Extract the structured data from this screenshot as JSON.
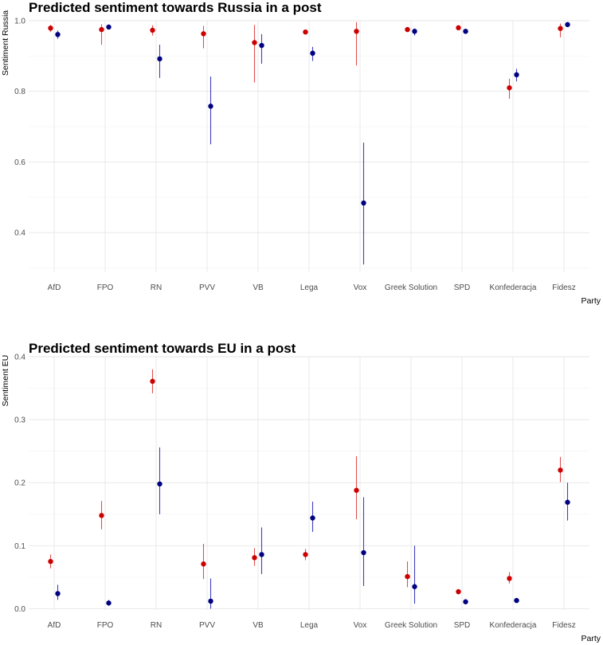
{
  "colors": {
    "red": "#cc0000",
    "blue": "#000080",
    "red_line": "#e05050",
    "blue_line": "#4040c0"
  },
  "chart_data": [
    {
      "type": "scatter",
      "title": "Predicted sentiment towards Russia in a post",
      "xlabel": "Party",
      "ylabel": "Sentiment Russia",
      "categories": [
        "AfD",
        "FPO",
        "RN",
        "PVV",
        "VB",
        "Lega",
        "Vox",
        "Greek Solution",
        "SPD",
        "Konfederacja",
        "Fidesz"
      ],
      "ylim": [
        0.29,
        1.0
      ],
      "yticks": [
        "0.4",
        "0.6",
        "0.8",
        "1.0"
      ],
      "series": [
        {
          "color": "#cc0000",
          "values": [
            0.979,
            0.975,
            0.973,
            0.963,
            0.938,
            0.968,
            0.97,
            0.975,
            0.98,
            0.81,
            0.978
          ],
          "lower": [
            0.968,
            0.932,
            0.958,
            0.922,
            0.825,
            0.963,
            0.873,
            0.968,
            0.976,
            0.779,
            0.953
          ],
          "upper": [
            0.988,
            0.99,
            0.987,
            0.985,
            0.988,
            0.973,
            0.996,
            0.982,
            0.984,
            0.836,
            0.992
          ]
        },
        {
          "color": "#000080",
          "values": [
            0.961,
            0.982,
            0.892,
            0.758,
            0.93,
            0.908,
            0.484,
            0.97,
            0.97,
            0.847,
            0.989
          ],
          "lower": [
            0.949,
            0.978,
            0.838,
            0.65,
            0.878,
            0.886,
            0.31,
            0.958,
            0.966,
            0.828,
            0.984
          ],
          "upper": [
            0.972,
            0.986,
            0.932,
            0.842,
            0.962,
            0.926,
            0.655,
            0.978,
            0.974,
            0.864,
            0.993
          ]
        }
      ]
    },
    {
      "type": "scatter",
      "title": "Predicted sentiment towards EU in a post",
      "xlabel": "Party",
      "ylabel": "Sentiment EU",
      "categories": [
        "AfD",
        "FPO",
        "RN",
        "PVV",
        "VB",
        "Lega",
        "Vox",
        "Greek Solution",
        "SPD",
        "Konfederacja",
        "Fidesz"
      ],
      "ylim": [
        -0.002,
        0.4
      ],
      "yticks": [
        "0.0",
        "0.1",
        "0.2",
        "0.3",
        "0.4"
      ],
      "series": [
        {
          "color": "#cc0000",
          "values": [
            0.075,
            0.148,
            0.361,
            0.071,
            0.081,
            0.086,
            0.188,
            0.051,
            0.027,
            0.048,
            0.22
          ],
          "lower": [
            0.064,
            0.126,
            0.342,
            0.047,
            0.068,
            0.077,
            0.142,
            0.034,
            0.023,
            0.04,
            0.201
          ],
          "upper": [
            0.086,
            0.171,
            0.38,
            0.103,
            0.096,
            0.095,
            0.242,
            0.075,
            0.031,
            0.058,
            0.241
          ]
        },
        {
          "color": "#000080",
          "values": [
            0.024,
            0.009,
            0.198,
            0.012,
            0.086,
            0.144,
            0.089,
            0.035,
            0.011,
            0.013,
            0.169
          ],
          "lower": [
            0.014,
            0.005,
            0.15,
            0.0,
            0.055,
            0.122,
            0.036,
            0.008,
            0.008,
            0.01,
            0.14
          ],
          "upper": [
            0.038,
            0.014,
            0.256,
            0.048,
            0.129,
            0.17,
            0.177,
            0.1,
            0.014,
            0.017,
            0.2
          ]
        }
      ]
    }
  ]
}
